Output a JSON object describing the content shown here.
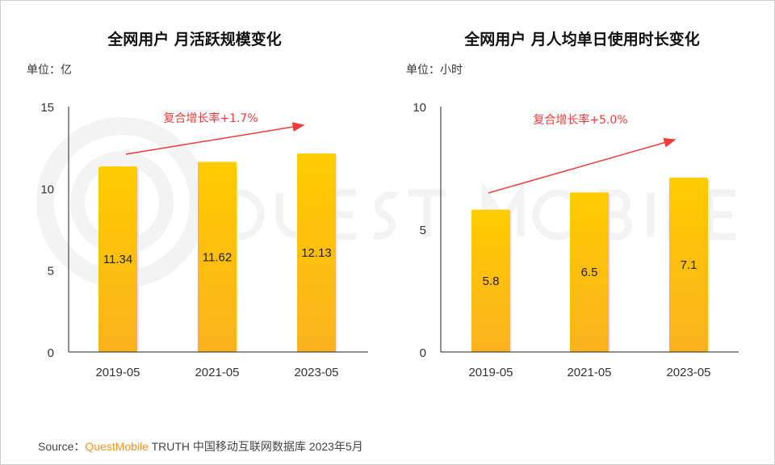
{
  "watermark": "QUEST MOBILE",
  "colors": {
    "bar_top": "#FFCC00",
    "bar_bottom": "#FBB21E",
    "arrow": "#F23A3A",
    "axis": "#222222"
  },
  "chart_data": [
    {
      "type": "bar",
      "title": "全网用户 月活跃规模变化",
      "unit": "单位：亿",
      "categories": [
        "2019-05",
        "2021-05",
        "2023-05"
      ],
      "values": [
        11.34,
        11.62,
        12.13
      ],
      "value_labels": [
        "11.34",
        "11.62",
        "12.13"
      ],
      "ylim": [
        0,
        15
      ],
      "yticks": [
        "0",
        "5",
        "10",
        "15"
      ],
      "ytick_values": [
        0,
        5,
        10,
        15
      ],
      "annotation": "复合增长率+1.7%"
    },
    {
      "type": "bar",
      "title": "全网用户 月人均单日使用时长变化",
      "unit": "单位：小时",
      "categories": [
        "2019-05",
        "2021-05",
        "2023-05"
      ],
      "values": [
        5.8,
        6.5,
        7.1
      ],
      "value_labels": [
        "5.8",
        "6.5",
        "7.1"
      ],
      "ylim": [
        0,
        10
      ],
      "yticks": [
        "0",
        "5",
        "10"
      ],
      "ytick_values": [
        0,
        5,
        10
      ],
      "annotation": "复合增长率+5.0%"
    }
  ],
  "source": {
    "prefix": "Source：",
    "brand": "QuestMobile",
    "rest": " TRUTH 中国移动互联网数据库 2023年5月"
  }
}
